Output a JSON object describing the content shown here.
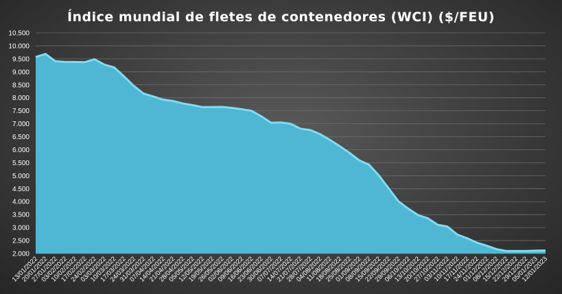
{
  "chart_data": {
    "type": "area",
    "title": "Índice mundial  de fletes de contenedores (WCI) ($/FEU)",
    "xlabel": "",
    "ylabel": "",
    "ylim": [
      2000,
      10500
    ],
    "yticks": [
      "2.000",
      "2.500",
      "3.000",
      "3.500",
      "4.000",
      "4.500",
      "5.000",
      "5.500",
      "6.000",
      "6.500",
      "7.000",
      "7.500",
      "8.000",
      "8.500",
      "9.000",
      "9.500",
      "10.000",
      "10.500"
    ],
    "ytick_values": [
      2000,
      2500,
      3000,
      3500,
      4000,
      4500,
      5000,
      5500,
      6000,
      6500,
      7000,
      7500,
      8000,
      8500,
      9000,
      9500,
      10000,
      10500
    ],
    "grid": true,
    "legend": "none",
    "colors": {
      "area": "#4fb6d4",
      "line": "#7fdcf2"
    },
    "categories": [
      "13/01/2022",
      "20/01/2022",
      "27/01/2022",
      "03/02/2022",
      "10/02/2022",
      "17/02/2022",
      "24/02/2022",
      "03/03/2022",
      "10/03/2022",
      "17/03/2022",
      "24/03/2022",
      "31/03/2022",
      "07/04/2022",
      "14/04/2022",
      "21/04/2022",
      "28/04/2022",
      "05/05/2022",
      "12/05/2022",
      "19/05/2022",
      "26/05/2022",
      "02/06/2022",
      "09/06/2022",
      "16/06/2022",
      "23/06/2022",
      "30/06/2022",
      "07/07/2022",
      "14/07/2022",
      "21/07/2022",
      "28/07/2022",
      "04/08/2022",
      "11/08/2022",
      "18/08/2022",
      "25/08/2022",
      "01/09/2022",
      "08/09/2022",
      "15/09/2022",
      "22/09/2022",
      "29/09/2022",
      "06/10/2022",
      "13/10/2022",
      "20/10/2022",
      "27/10/2022",
      "03/11/2022",
      "10/11/2022",
      "17/11/2022",
      "24/11/2022",
      "01/12/2022",
      "08/12/2022",
      "15/12/2022",
      "22/12/2022",
      "29/12/2022",
      "05/01/2023",
      "12/01/2023"
    ],
    "values": [
      9570,
      9690,
      9410,
      9380,
      9380,
      9370,
      9480,
      9280,
      9170,
      8830,
      8460,
      8160,
      8050,
      7930,
      7880,
      7780,
      7720,
      7640,
      7640,
      7650,
      7610,
      7560,
      7500,
      7290,
      7040,
      7050,
      7000,
      6810,
      6760,
      6600,
      6380,
      6140,
      5880,
      5590,
      5420,
      5010,
      4510,
      4010,
      3730,
      3480,
      3360,
      3110,
      3040,
      2730,
      2590,
      2420,
      2300,
      2170,
      2100,
      2100,
      2100,
      2110,
      2120
    ]
  }
}
